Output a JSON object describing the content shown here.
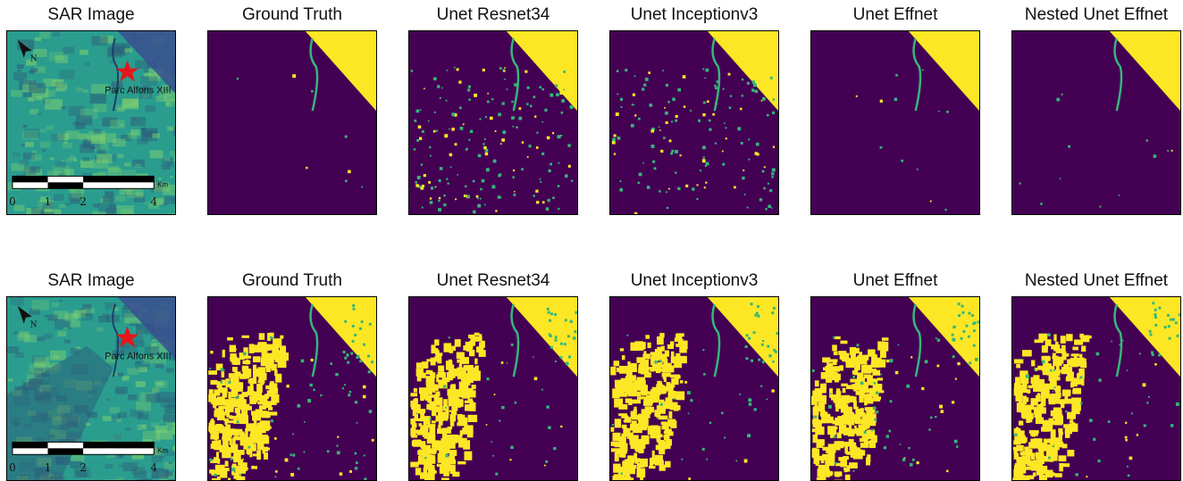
{
  "rows": [
    {
      "panels": [
        {
          "title": "SAR Image",
          "kind": "sar",
          "variant": "dry"
        },
        {
          "title": "Ground Truth",
          "kind": "mask",
          "flood_level": 0.05,
          "speckle": 0.002
        },
        {
          "title": "Unet Resnet34",
          "kind": "mask",
          "flood_level": 0.05,
          "speckle": 0.045
        },
        {
          "title": "Unet Inceptionv3",
          "kind": "mask",
          "flood_level": 0.05,
          "speckle": 0.035
        },
        {
          "title": "Unet Effnet",
          "kind": "mask",
          "flood_level": 0.04,
          "speckle": 0.003
        },
        {
          "title": "Nested Unet Effnet",
          "kind": "mask",
          "flood_level": 0.04,
          "speckle": 0.003
        }
      ]
    },
    {
      "panels": [
        {
          "title": "SAR Image",
          "kind": "sar",
          "variant": "flooded"
        },
        {
          "title": "Ground Truth",
          "kind": "mask",
          "flood_level": 1.0,
          "speckle": 0.02
        },
        {
          "title": "Unet Resnet34",
          "kind": "mask",
          "flood_level": 0.92,
          "speckle": 0.01
        },
        {
          "title": "Unet Inceptionv3",
          "kind": "mask",
          "flood_level": 0.9,
          "speckle": 0.01
        },
        {
          "title": "Unet Effnet",
          "kind": "mask",
          "flood_level": 0.95,
          "speckle": 0.015
        },
        {
          "title": "Nested Unet Effnet",
          "kind": "mask",
          "flood_level": 0.95,
          "speckle": 0.012
        }
      ]
    }
  ],
  "sar_map": {
    "place_label": "Parc Alfons XIII",
    "scale_unit": "Km",
    "scale_ticks": [
      "0",
      "1",
      "2",
      "4"
    ],
    "north_icon": "north-arrow-icon",
    "marker_icon": "star-icon"
  },
  "colors": {
    "background": "#440154",
    "water": "#fde725",
    "speckle": "#35b779",
    "sar_base": "#2a9d8f",
    "sar_light": "#7ccf6e",
    "sar_dark": "#2c5e7a",
    "star": "#e4161b"
  }
}
